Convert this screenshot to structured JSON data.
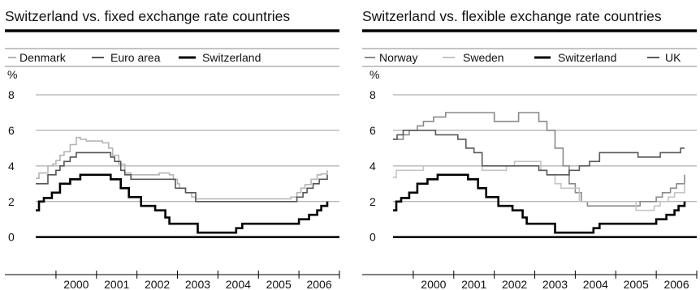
{
  "colors": {
    "Switzerland": "#000000",
    "Euro area": "#555555",
    "Denmark": "#b5b5b5",
    "Norway": "#8a8a8a",
    "Sweden": "#c4c4c4",
    "UK": "#5a5a5a",
    "grid": "#9a9a9a"
  },
  "chart_data": [
    {
      "type": "line",
      "title": "Switzerland vs. fixed exchange rate countries",
      "ylabel": "%",
      "xlabel": "",
      "ylim": [
        -1.7,
        8
      ],
      "xlim": [
        1999.5,
        2007.0
      ],
      "yticks": [
        0,
        2,
        4,
        6,
        8
      ],
      "xticks": [
        "2000",
        "2001",
        "2002",
        "2003",
        "2004",
        "2005",
        "2006"
      ],
      "grid": true,
      "legend_position": "top",
      "series": [
        {
          "name": "Denmark",
          "x": [
            1999.5,
            1999.58,
            1999.7,
            1999.8,
            1999.92,
            2000.0,
            2000.1,
            2000.2,
            2000.35,
            2000.5,
            2000.6,
            2000.75,
            2000.85,
            2001.15,
            2001.3,
            2001.4,
            2001.55,
            2001.7,
            2001.85,
            2002.0,
            2002.45,
            2002.55,
            2002.8,
            2002.9,
            2003.0,
            2003.05,
            2003.2,
            2003.35,
            2003.45,
            2005.7,
            2005.8,
            2005.95,
            2006.05,
            2006.15,
            2006.3,
            2006.45,
            2006.55,
            2006.7
          ],
          "y": [
            3.3,
            3.6,
            3.6,
            4.0,
            4.1,
            4.3,
            4.6,
            4.8,
            5.2,
            5.6,
            5.5,
            5.4,
            5.4,
            5.3,
            5.0,
            4.6,
            4.1,
            3.6,
            3.5,
            3.5,
            3.5,
            3.6,
            3.5,
            3.25,
            3.0,
            2.75,
            2.5,
            2.25,
            2.15,
            2.15,
            2.25,
            2.5,
            2.75,
            2.95,
            3.25,
            3.5,
            3.55,
            3.75
          ]
        },
        {
          "name": "Euro area",
          "x": [
            1999.5,
            1999.58,
            1999.7,
            1999.8,
            1999.92,
            2000.0,
            2000.1,
            2000.2,
            2000.35,
            2000.5,
            2000.75,
            2001.35,
            2001.45,
            2001.6,
            2001.7,
            2001.85,
            2002.8,
            2002.95,
            2003.2,
            2003.45,
            2005.8,
            2005.95,
            2006.1,
            2006.2,
            2006.35,
            2006.5,
            2006.6,
            2006.7
          ],
          "y": [
            3.0,
            3.0,
            3.0,
            3.5,
            3.5,
            3.75,
            4.0,
            4.25,
            4.5,
            4.75,
            4.75,
            4.5,
            4.25,
            3.75,
            3.5,
            3.25,
            3.25,
            2.75,
            2.5,
            2.0,
            2.0,
            2.25,
            2.5,
            2.75,
            3.0,
            3.25,
            3.25,
            3.5
          ]
        },
        {
          "name": "Switzerland",
          "x": [
            1999.5,
            1999.58,
            1999.7,
            1999.9,
            2000.1,
            2000.35,
            2000.6,
            2001.2,
            2001.35,
            2001.6,
            2001.8,
            2002.1,
            2002.35,
            2002.45,
            2002.7,
            2002.8,
            2003.0,
            2003.2,
            2003.5,
            2004.1,
            2004.45,
            2004.6,
            2004.75,
            2005.0,
            2005.85,
            2006.0,
            2006.25,
            2006.45,
            2006.55,
            2006.7
          ],
          "y": [
            1.5,
            2.0,
            2.2,
            2.5,
            3.0,
            3.25,
            3.5,
            3.5,
            3.25,
            2.75,
            2.25,
            1.75,
            1.75,
            1.5,
            1.1,
            0.75,
            0.75,
            0.75,
            0.25,
            0.25,
            0.5,
            0.75,
            0.75,
            0.75,
            0.75,
            1.0,
            1.25,
            1.5,
            1.75,
            2.0
          ]
        }
      ]
    },
    {
      "type": "line",
      "title": "Switzerland vs. flexible exchange rate countries",
      "ylabel": "%",
      "xlabel": "",
      "ylim": [
        -1.7,
        8
      ],
      "xlim": [
        1999.5,
        2007.0
      ],
      "yticks": [
        0,
        2,
        4,
        6,
        8
      ],
      "xticks": [
        "2000",
        "2001",
        "2002",
        "2003",
        "2004",
        "2005",
        "2006"
      ],
      "grid": true,
      "legend_position": "top",
      "series": [
        {
          "name": "Norway",
          "x": [
            1999.5,
            1999.58,
            1999.75,
            1999.9,
            2000.1,
            2000.25,
            2000.5,
            2000.8,
            2001.0,
            2001.9,
            2002.0,
            2002.5,
            2002.6,
            2003.0,
            2003.1,
            2003.3,
            2003.5,
            2003.7,
            2003.85,
            2004.0,
            2004.15,
            2004.3,
            2005.45,
            2005.6,
            2005.9,
            2006.0,
            2006.15,
            2006.35,
            2006.5,
            2006.7
          ],
          "y": [
            5.5,
            5.5,
            5.75,
            6.0,
            6.25,
            6.5,
            6.75,
            7.0,
            7.0,
            7.0,
            6.5,
            6.5,
            7.0,
            7.0,
            6.5,
            6.0,
            5.0,
            4.0,
            3.0,
            2.5,
            2.0,
            1.75,
            1.75,
            2.0,
            2.0,
            2.25,
            2.5,
            2.75,
            3.0,
            3.5
          ]
        },
        {
          "name": "Sweden",
          "x": [
            1999.5,
            1999.58,
            2000.1,
            2000.25,
            2001.0,
            2001.5,
            2001.7,
            2001.9,
            2002.3,
            2002.5,
            2002.85,
            2003.15,
            2003.3,
            2003.5,
            2003.65,
            2003.85,
            2004.1,
            2004.5,
            2005.5,
            2005.55,
            2005.95,
            2006.1,
            2006.3,
            2006.45,
            2006.7
          ],
          "y": [
            3.35,
            3.75,
            3.75,
            4.0,
            4.0,
            4.0,
            3.75,
            3.75,
            4.0,
            4.25,
            4.25,
            3.75,
            3.5,
            3.0,
            2.75,
            2.75,
            2.0,
            2.0,
            1.5,
            1.5,
            1.75,
            2.0,
            2.25,
            2.5,
            3.0
          ]
        },
        {
          "name": "Switzerland",
          "x": [
            1999.5,
            1999.58,
            1999.7,
            1999.9,
            2000.1,
            2000.35,
            2000.6,
            2001.2,
            2001.35,
            2001.6,
            2001.8,
            2002.1,
            2002.35,
            2002.45,
            2002.7,
            2002.8,
            2003.0,
            2003.2,
            2003.5,
            2004.1,
            2004.45,
            2004.6,
            2004.75,
            2005.0,
            2005.85,
            2006.0,
            2006.25,
            2006.45,
            2006.55,
            2006.7
          ],
          "y": [
            1.5,
            2.0,
            2.2,
            2.5,
            3.0,
            3.25,
            3.5,
            3.5,
            3.25,
            2.75,
            2.25,
            1.75,
            1.75,
            1.5,
            1.1,
            0.75,
            0.75,
            0.75,
            0.25,
            0.25,
            0.5,
            0.75,
            0.75,
            0.75,
            0.75,
            1.0,
            1.25,
            1.5,
            1.75,
            2.0
          ]
        },
        {
          "name": "UK",
          "x": [
            1999.5,
            1999.6,
            1999.75,
            2000.35,
            2000.55,
            2001.0,
            2001.1,
            2001.3,
            2001.5,
            2001.7,
            2002.0,
            2002.8,
            2003.1,
            2003.3,
            2003.6,
            2003.85,
            2004.1,
            2004.35,
            2004.6,
            2005.55,
            2006.1,
            2006.6,
            2006.7
          ],
          "y": [
            5.5,
            5.75,
            6.0,
            6.0,
            5.75,
            5.75,
            5.5,
            5.0,
            4.75,
            4.0,
            4.0,
            4.0,
            3.75,
            3.5,
            3.5,
            3.75,
            4.0,
            4.25,
            4.75,
            4.5,
            4.75,
            5.0,
            5.0
          ]
        }
      ]
    }
  ]
}
